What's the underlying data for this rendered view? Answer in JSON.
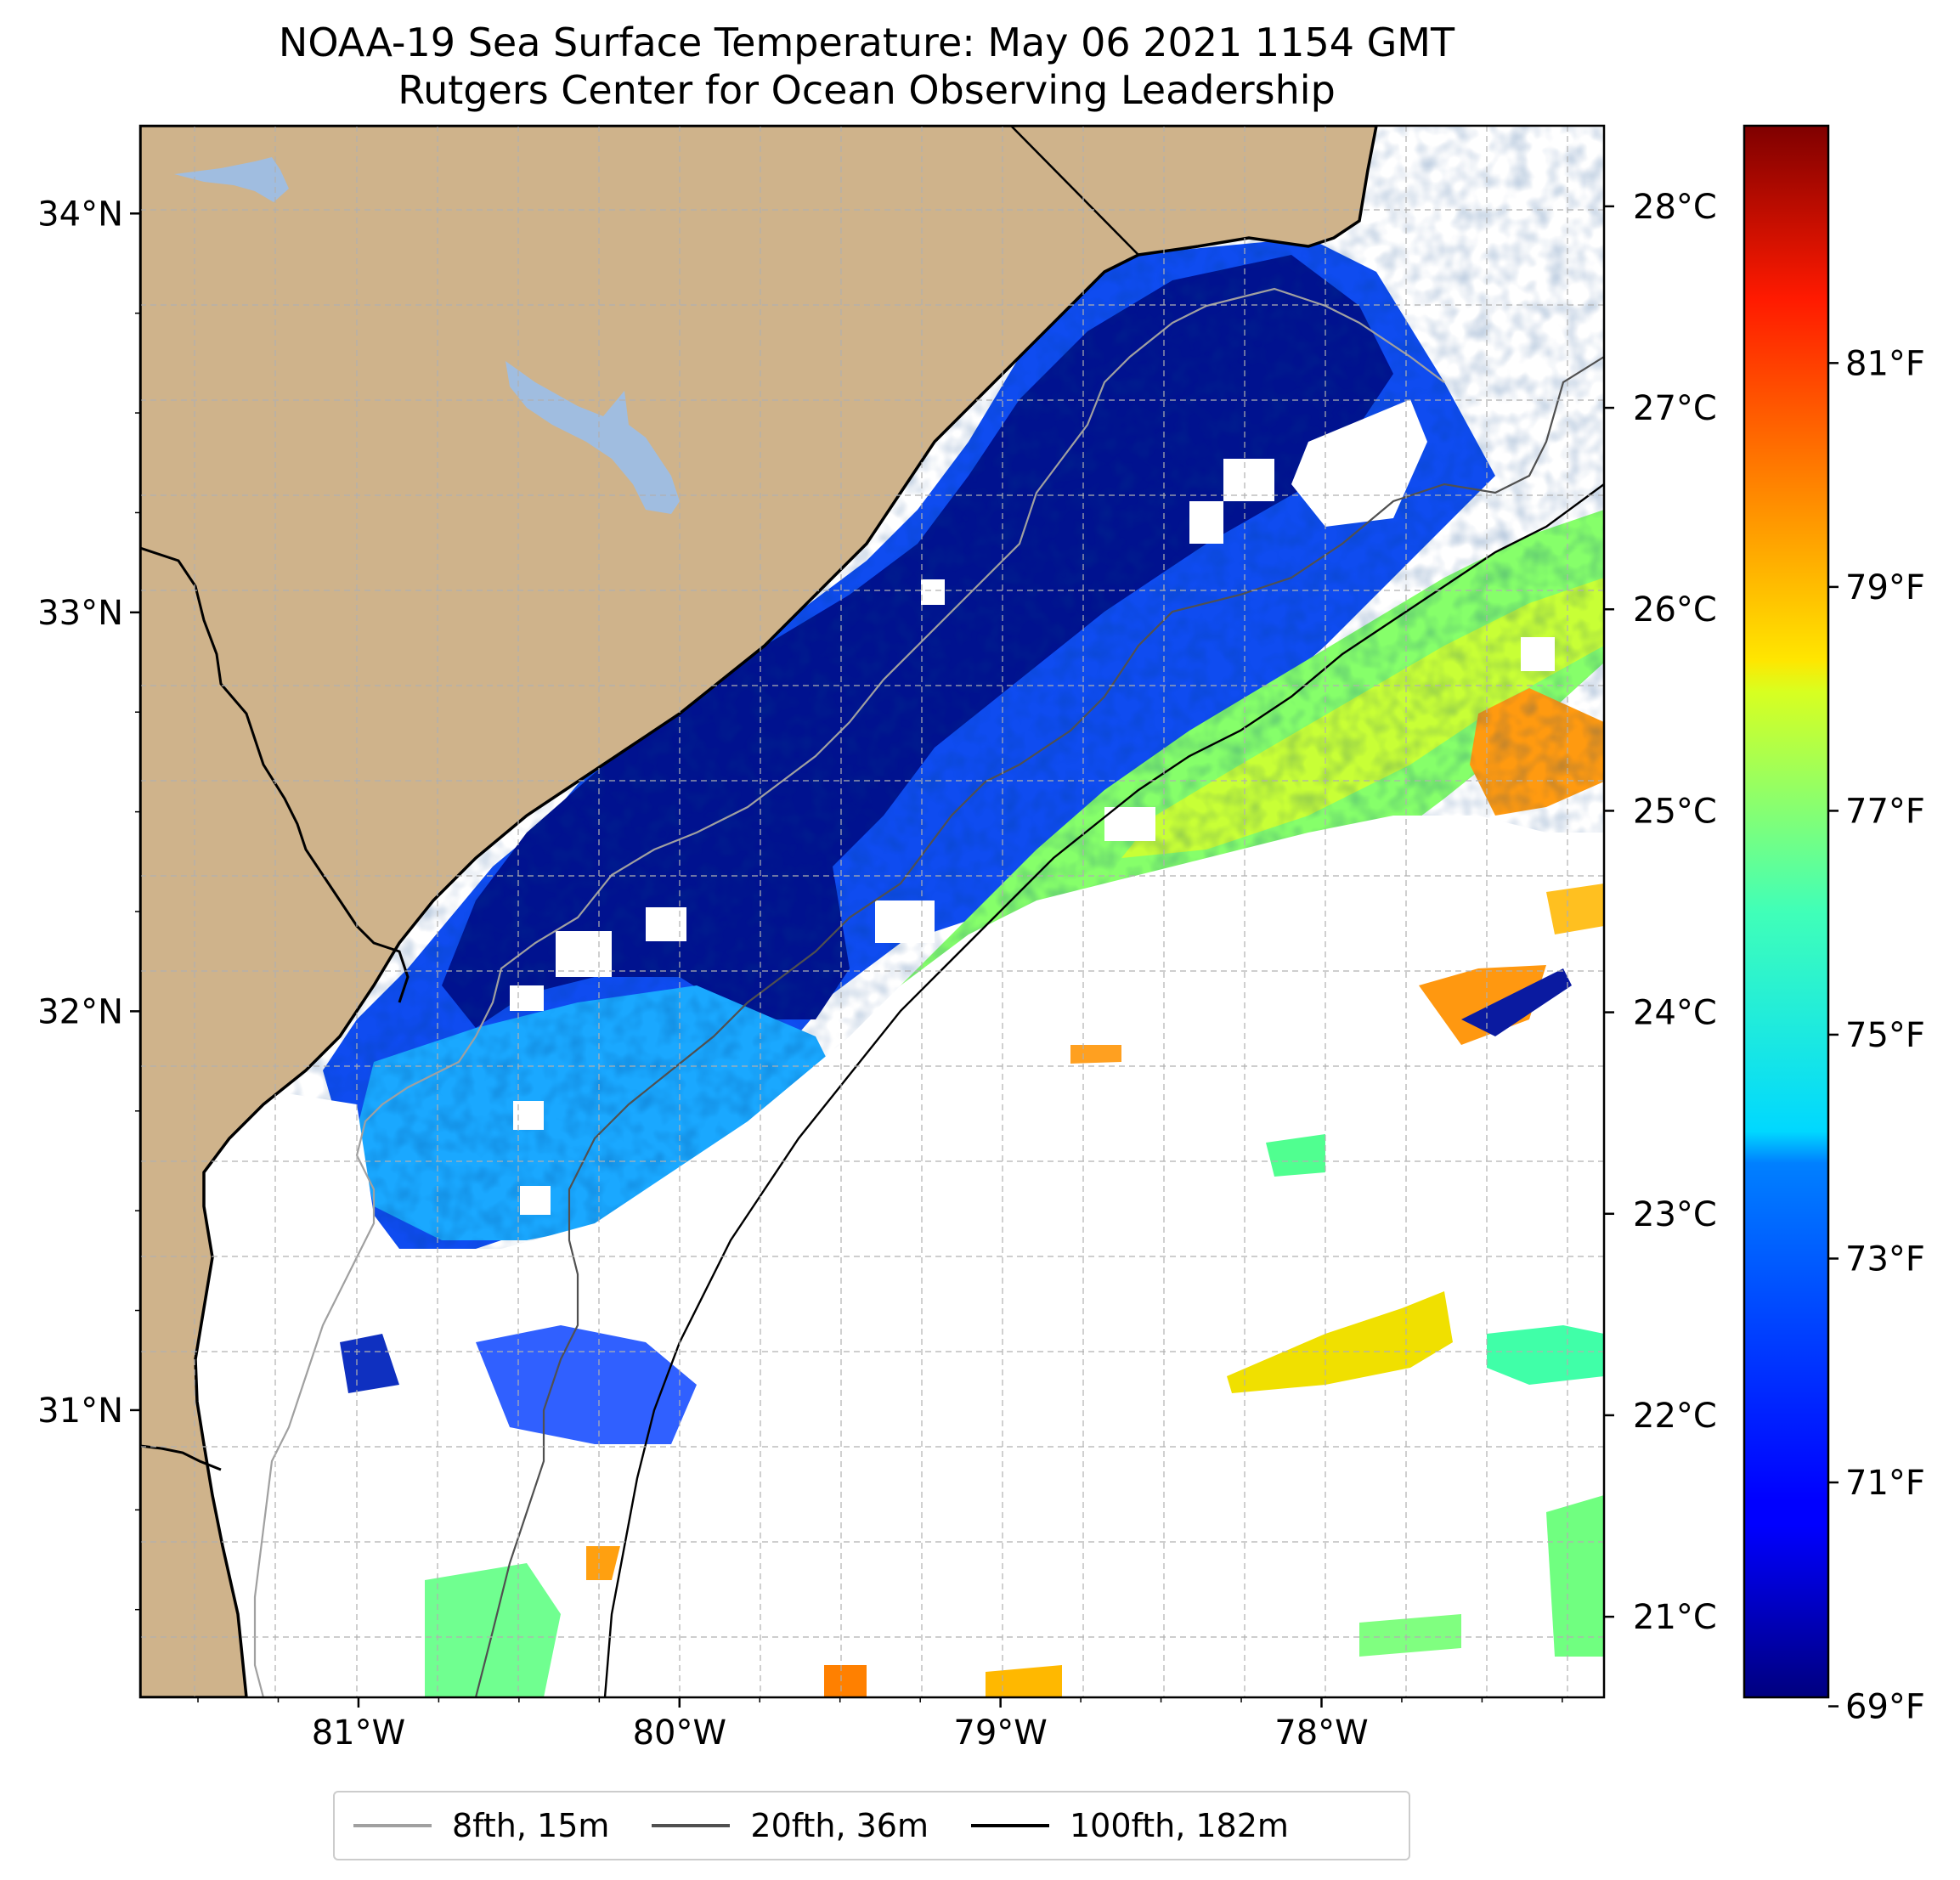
{
  "title": {
    "line1": "NOAA-19 Sea Surface Temperature: May 06 2021 1154 GMT",
    "line2": "Rutgers Center for Ocean Observing Leadership"
  },
  "map": {
    "lon_range": [
      -81.68,
      -77.12
    ],
    "lat_range": [
      30.28,
      34.22
    ],
    "land_color": "#cfb38b",
    "lake_color": "#a0bde0",
    "gridlines": "dashed",
    "lon_ticks": [
      {
        "value": -81,
        "label": "81°W"
      },
      {
        "value": -80,
        "label": "80°W"
      },
      {
        "value": -79,
        "label": "79°W"
      },
      {
        "value": -78,
        "label": "78°W"
      }
    ],
    "lat_ticks": [
      {
        "value": 34,
        "label": "34°N"
      },
      {
        "value": 33,
        "label": "33°N"
      },
      {
        "value": 32,
        "label": "32°N"
      },
      {
        "value": 31,
        "label": "31°N"
      }
    ]
  },
  "colorbar": {
    "colormap": "jet",
    "range_c": [
      20.6,
      28.4
    ],
    "celsius_ticks": [
      {
        "value": 28,
        "label": "28°C"
      },
      {
        "value": 27,
        "label": "27°C"
      },
      {
        "value": 26,
        "label": "26°C"
      },
      {
        "value": 25,
        "label": "25°C"
      },
      {
        "value": 24,
        "label": "24°C"
      },
      {
        "value": 23,
        "label": "23°C"
      },
      {
        "value": 22,
        "label": "22°C"
      },
      {
        "value": 21,
        "label": "21°C"
      }
    ],
    "fahrenheit_ticks": [
      {
        "value": 81,
        "label": "81°F"
      },
      {
        "value": 79,
        "label": "79°F"
      },
      {
        "value": 77,
        "label": "77°F"
      },
      {
        "value": 75,
        "label": "75°F"
      },
      {
        "value": 73,
        "label": "73°F"
      },
      {
        "value": 71,
        "label": "71°F"
      },
      {
        "value": 69,
        "label": "69°F"
      }
    ]
  },
  "legend": {
    "items": [
      {
        "label": "8fth, 15m",
        "color": "#a0a0a0"
      },
      {
        "label": "20fth, 36m",
        "color": "#505050"
      },
      {
        "label": "100fth, 182m",
        "color": "#000000"
      }
    ]
  }
}
